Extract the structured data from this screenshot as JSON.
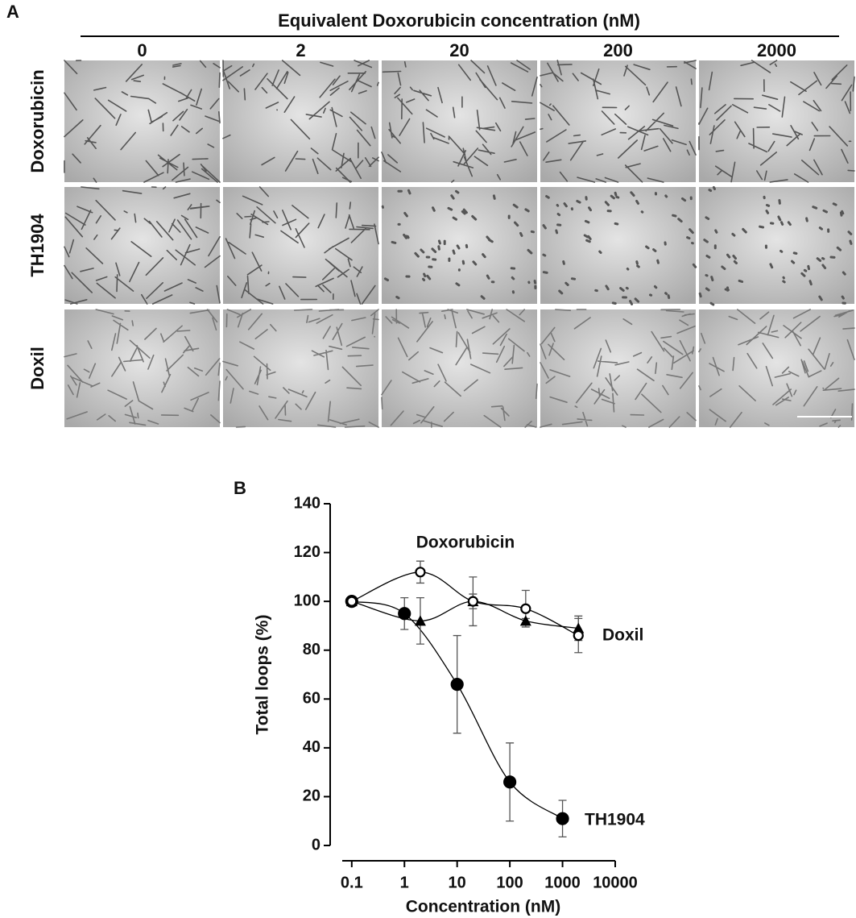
{
  "panel_a": {
    "label": "A",
    "header": "Equivalent Doxorubicin concentration (nM)",
    "columns": [
      "0",
      "2",
      "20",
      "200",
      "2000"
    ],
    "rows": [
      "Doxorubicin",
      "TH1904",
      "Doxil"
    ]
  },
  "panel_b_label": "B",
  "chart_data": {
    "type": "line",
    "x_label": "Concentration (nM)",
    "y_label": "Total loops (%)",
    "xscale": "log",
    "xlim": [
      0.066,
      10000
    ],
    "xticks": [
      0.1,
      1,
      10,
      100,
      1000,
      10000
    ],
    "ylim": [
      0,
      140
    ],
    "yticks": [
      0,
      20,
      40,
      60,
      80,
      100,
      120,
      140
    ],
    "series": [
      {
        "name": "TH1904",
        "color": "#000000",
        "marker": "circle-filled",
        "x": [
          0.1,
          1,
          10,
          100,
          1000
        ],
        "values": [
          100,
          95,
          66,
          26,
          11
        ],
        "errors": [
          null,
          6.5,
          20,
          16,
          7.5
        ]
      },
      {
        "name": "Doxil",
        "color": "#000000",
        "marker": "triangle",
        "x": [
          0.1,
          2,
          20,
          200,
          2000
        ],
        "values": [
          100,
          92,
          100,
          92,
          89
        ],
        "errors": [
          null,
          9.5,
          3,
          1,
          5
        ]
      },
      {
        "name": "Doxorubicin",
        "color": "#000000",
        "marker": "circle-open",
        "x": [
          0.1,
          2,
          20,
          200,
          2000
        ],
        "values": [
          100,
          112,
          100,
          97,
          86
        ],
        "errors": [
          null,
          4.5,
          10,
          7.5,
          7
        ]
      }
    ]
  }
}
